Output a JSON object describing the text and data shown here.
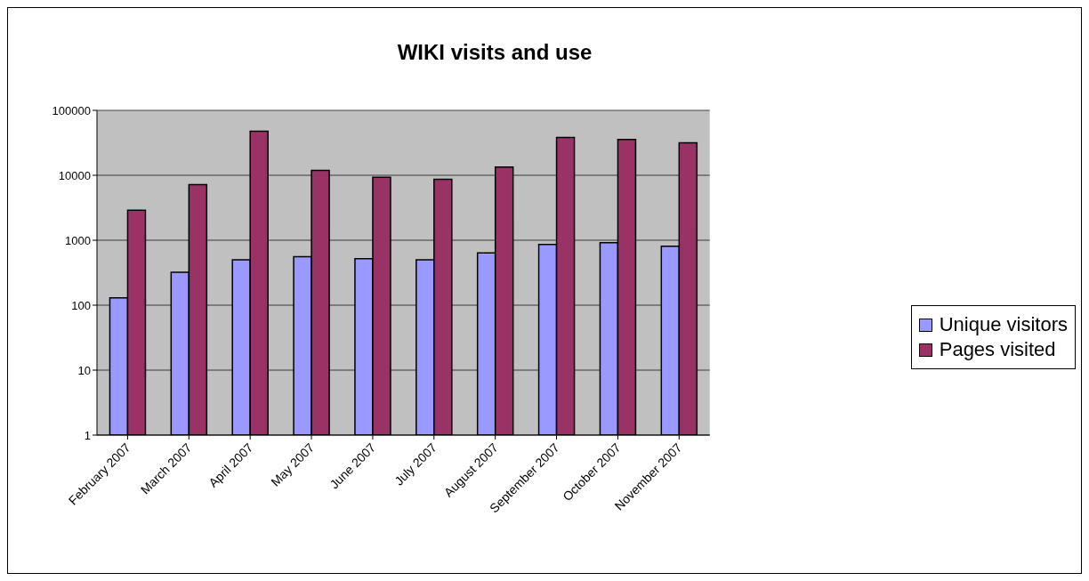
{
  "chart_data": {
    "type": "bar",
    "title": "WIKI visits and use",
    "categories": [
      "February 2007",
      "March 2007",
      "April 2007",
      "May 2007",
      "June 2007",
      "July 2007",
      "August 2007",
      "September 2007",
      "October 2007",
      "November 2007"
    ],
    "series": [
      {
        "name": "Unique visitors",
        "color": "#9999ff",
        "values": [
          130,
          320,
          500,
          560,
          520,
          500,
          640,
          860,
          920,
          810
        ]
      },
      {
        "name": "Pages visited",
        "color": "#993366",
        "values": [
          2900,
          7200,
          47500,
          11900,
          9300,
          8700,
          13400,
          38200,
          35500,
          31600
        ]
      }
    ],
    "log": "y",
    "ylim": [
      1,
      100000
    ],
    "yticks": [
      1,
      10,
      100,
      1000,
      10000,
      100000
    ],
    "grid": "y",
    "legend": "right"
  }
}
